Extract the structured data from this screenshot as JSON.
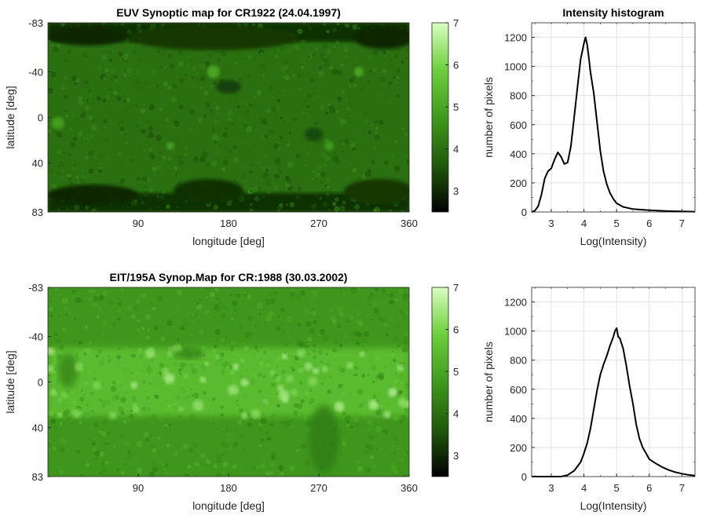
{
  "chart_data": [
    {
      "type": "heatmap",
      "title": "EUV Synoptic map for CR1922 (24.04.1997)",
      "xlabel": "longitude [deg]",
      "ylabel": "latitude [deg]",
      "xlim": [
        0,
        360
      ],
      "ylim": [
        -83,
        83
      ],
      "y_reversed": true,
      "xticks": [
        90,
        180,
        270,
        360
      ],
      "yticks": [
        -83,
        -40,
        0,
        40,
        83
      ],
      "colorbar": {
        "range": [
          2.5,
          7
        ],
        "ticks": [
          3,
          4,
          5,
          6,
          7
        ],
        "colormap": [
          "#000000",
          "#1f5a0a",
          "#3f9a1c",
          "#6ccf3a",
          "#d8ffc0"
        ]
      },
      "description_values": {
        "base_level": 4.0,
        "polar_regions_level": 3.1,
        "coronal_holes": [
          {
            "lon": 165,
            "lat": -70,
            "width": 170,
            "height": 22,
            "level": 3.2
          },
          {
            "lon": 40,
            "lat": -72,
            "width": 80,
            "height": 18,
            "level": 3.0
          },
          {
            "lon": 335,
            "lat": -70,
            "width": 60,
            "height": 20,
            "level": 3.0
          },
          {
            "lon": 45,
            "lat": 68,
            "width": 90,
            "height": 18,
            "level": 3.0
          },
          {
            "lon": 160,
            "lat": 65,
            "width": 70,
            "height": 22,
            "level": 3.1
          },
          {
            "lon": 330,
            "lat": 65,
            "width": 70,
            "height": 22,
            "level": 3.2
          },
          {
            "lon": 180,
            "lat": -27,
            "width": 25,
            "height": 12,
            "level": 3.3
          },
          {
            "lon": 265,
            "lat": 15,
            "width": 18,
            "height": 12,
            "level": 3.4
          }
        ],
        "active_regions": [
          {
            "lon": 165,
            "lat": -40,
            "r": 8,
            "level": 5.0
          },
          {
            "lon": 310,
            "lat": -40,
            "r": 6,
            "level": 5.0
          },
          {
            "lon": 10,
            "lat": 5,
            "r": 8,
            "level": 4.8
          },
          {
            "lon": 280,
            "lat": 25,
            "r": 6,
            "level": 4.8
          },
          {
            "lon": 122,
            "lat": 25,
            "r": 5,
            "level": 4.9
          }
        ]
      }
    },
    {
      "type": "line",
      "title": "Intensity histogram",
      "xlabel": "Log(Intensity)",
      "ylabel": "number of pixels",
      "xlim": [
        2.4,
        7.4
      ],
      "ylim": [
        0,
        1300
      ],
      "xticks": [
        3,
        4,
        5,
        6,
        7
      ],
      "yticks": [
        0,
        200,
        400,
        600,
        800,
        1000,
        1200
      ],
      "grid": true,
      "series": [
        {
          "x": [
            2.4,
            2.5,
            2.6,
            2.7,
            2.8,
            2.9,
            3.0,
            3.1,
            3.2,
            3.3,
            3.4,
            3.5,
            3.6,
            3.7,
            3.8,
            3.9,
            4.0,
            4.05,
            4.1,
            4.15,
            4.2,
            4.3,
            4.4,
            4.5,
            4.6,
            4.7,
            4.8,
            4.9,
            5.0,
            5.2,
            5.5,
            6.0,
            6.5,
            7.0,
            7.4
          ],
          "y": [
            0,
            10,
            40,
            120,
            230,
            280,
            300,
            360,
            410,
            380,
            330,
            340,
            450,
            650,
            850,
            1050,
            1160,
            1200,
            1150,
            1060,
            960,
            820,
            620,
            420,
            280,
            190,
            130,
            90,
            60,
            35,
            20,
            12,
            7,
            4,
            2
          ]
        }
      ]
    },
    {
      "type": "heatmap",
      "title": "EIT/195A Synop.Map for CR:1988 (30.03.2002)",
      "xlabel": "longitude [deg]",
      "ylabel": "latitude [deg]",
      "xlim": [
        0,
        360
      ],
      "ylim": [
        -83,
        83
      ],
      "y_reversed": true,
      "xticks": [
        90,
        180,
        270,
        360
      ],
      "yticks": [
        -83,
        -40,
        0,
        40,
        83
      ],
      "colorbar": {
        "range": [
          2.5,
          7
        ],
        "ticks": [
          3,
          4,
          5,
          6,
          7
        ],
        "colormap": [
          "#000000",
          "#1f5a0a",
          "#3f9a1c",
          "#6ccf3a",
          "#d8ffc0"
        ]
      },
      "description_values": {
        "base_level": 4.7,
        "active_belt": {
          "lat_min": -30,
          "lat_max": 30,
          "level": 5.6
        },
        "dark_lanes": [
          {
            "lon": 275,
            "lat": 50,
            "width": 30,
            "height": 60,
            "level": 4.2
          },
          {
            "lon": 140,
            "lat": -25,
            "width": 30,
            "height": 10,
            "level": 4.3
          },
          {
            "lon": 20,
            "lat": -10,
            "width": 20,
            "height": 30,
            "level": 4.4
          }
        ]
      }
    },
    {
      "type": "line",
      "title": "",
      "xlabel": "Log(Intensity)",
      "ylabel": "number of pixels",
      "xlim": [
        2.4,
        7.4
      ],
      "ylim": [
        0,
        1300
      ],
      "xticks": [
        3,
        4,
        5,
        6,
        7
      ],
      "yticks": [
        0,
        200,
        400,
        600,
        800,
        1000,
        1200
      ],
      "grid": true,
      "series": [
        {
          "x": [
            2.4,
            3.0,
            3.3,
            3.5,
            3.7,
            3.9,
            4.0,
            4.1,
            4.2,
            4.3,
            4.4,
            4.5,
            4.6,
            4.7,
            4.8,
            4.9,
            4.95,
            5.0,
            5.05,
            5.1,
            5.2,
            5.3,
            5.4,
            5.5,
            5.6,
            5.7,
            5.8,
            5.9,
            6.0,
            6.2,
            6.4,
            6.6,
            6.8,
            7.0,
            7.2,
            7.4
          ],
          "y": [
            0,
            0,
            0,
            10,
            40,
            100,
            160,
            230,
            330,
            460,
            590,
            700,
            770,
            830,
            900,
            960,
            1000,
            1020,
            960,
            950,
            880,
            760,
            620,
            500,
            360,
            260,
            200,
            160,
            120,
            90,
            65,
            45,
            30,
            20,
            12,
            6
          ]
        }
      ]
    }
  ]
}
